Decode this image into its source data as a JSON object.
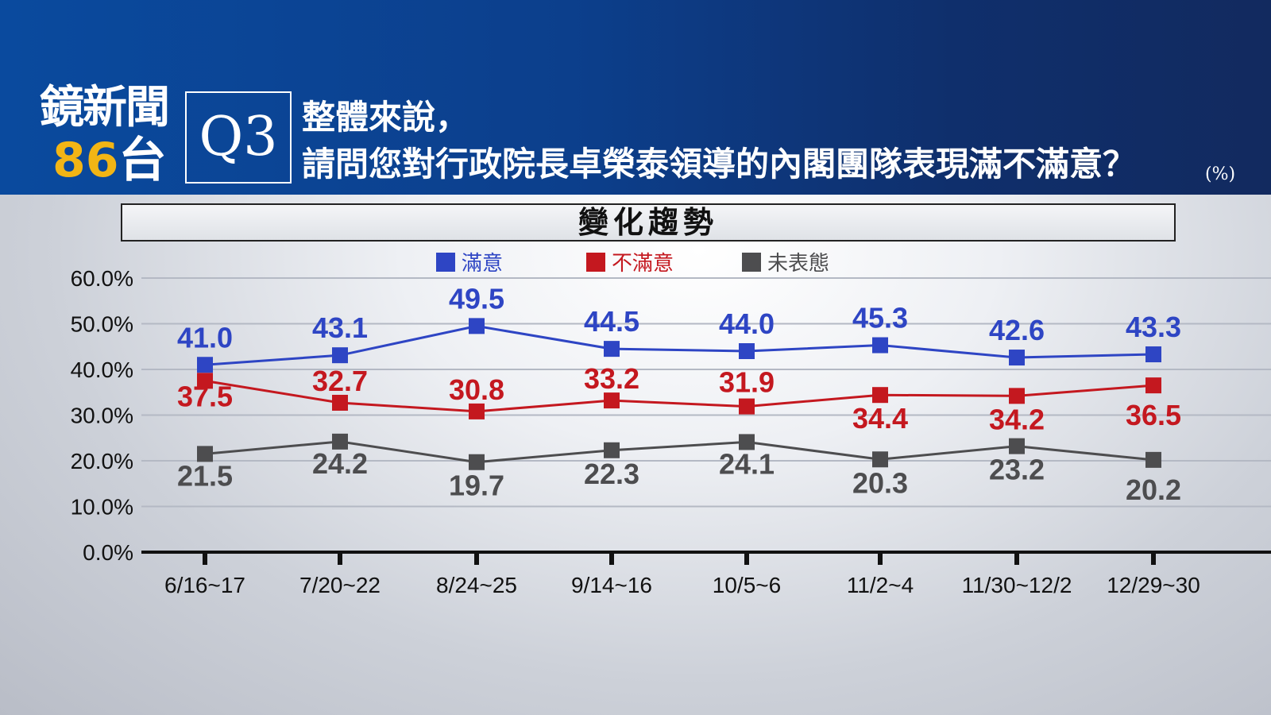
{
  "header": {
    "logo_text": "鏡新聞",
    "logo_number": "86",
    "logo_suffix": "台",
    "question_number": "Q3",
    "question_line1": "整體來說，",
    "question_line2": "請問您對行政院長卓榮泰領導的內閣團隊表現滿不滿意？",
    "unit": "(%)"
  },
  "colors": {
    "header_bg": "#0c3f8c",
    "logo_number": "#f2b515",
    "satisfied": "#2e45c4",
    "dissatisfied": "#c4181f",
    "undecided": "#4d4d4f"
  },
  "chart_data": {
    "type": "line",
    "title": "變化趨勢",
    "categories": [
      "6/16~17",
      "7/20~22",
      "8/24~25",
      "9/14~16",
      "10/5~6",
      "11/2~4",
      "11/30~12/2",
      "12/29~30"
    ],
    "ylim": [
      0,
      60
    ],
    "yticks": [
      "0.0%",
      "10.0%",
      "20.0%",
      "30.0%",
      "40.0%",
      "50.0%",
      "60.0%"
    ],
    "grid": true,
    "legend_position": "top",
    "series": [
      {
        "name": "滿意",
        "color": "#2e45c4",
        "values": [
          41.0,
          43.1,
          49.5,
          44.5,
          44.0,
          45.3,
          42.6,
          43.3
        ],
        "labels": [
          "41.0",
          "43.1",
          "49.5",
          "44.5",
          "44.0",
          "45.3",
          "42.6",
          "43.3"
        ]
      },
      {
        "name": "不滿意",
        "color": "#c4181f",
        "values": [
          37.5,
          32.7,
          30.8,
          33.2,
          31.9,
          34.4,
          34.2,
          36.5
        ],
        "labels": [
          "37.5",
          "32.7",
          "30.8",
          "33.2",
          "31.9",
          "34.4",
          "34.2",
          "36.5"
        ]
      },
      {
        "name": "未表態",
        "color": "#4d4d4f",
        "values": [
          21.5,
          24.2,
          19.7,
          22.3,
          24.1,
          20.3,
          23.2,
          20.2
        ],
        "labels": [
          "21.5",
          "24.2",
          "19.7",
          "22.3",
          "24.1",
          "20.3",
          "23.2",
          "20.2"
        ]
      }
    ]
  }
}
